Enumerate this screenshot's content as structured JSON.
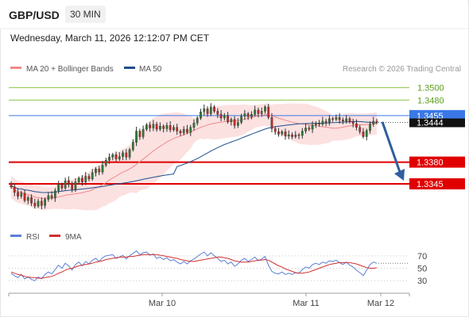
{
  "header": {
    "symbol": "GBP/USD",
    "timeframe": "30 MIN",
    "datetime": "Wednesday, March 11, 2026 12:12:07 PM CET"
  },
  "legend": {
    "ma20": "MA 20 + Bollinger Bands",
    "ma50": "MA 50",
    "credit": "Research © 2026 Trading Central",
    "ma20_color": "#f08a8a",
    "ma50_color": "#1f4e8c"
  },
  "chart_data": [
    {
      "type": "candlestick",
      "title": "",
      "x_tick_labels": [
        "Mar 10",
        "Mar 11",
        "Mar 12"
      ],
      "ylim": [
        1.329,
        1.352
      ],
      "levels": [
        {
          "label": "1.3500",
          "value": 1.35,
          "style": "green-thin"
        },
        {
          "label": "1.3480",
          "value": 1.348,
          "style": "green-thin"
        },
        {
          "label": "1.3455",
          "value": 1.3455,
          "style": "current-price"
        },
        {
          "label": "1.3444",
          "value": 1.3444,
          "style": "dotted-last"
        },
        {
          "label": "1.3380",
          "value": 1.338,
          "style": "red-support"
        },
        {
          "label": "1.3345",
          "value": 1.3345,
          "style": "red-support"
        }
      ],
      "colors": {
        "up": "#2e7d32",
        "down": "#c62828",
        "support": "#e00000",
        "current": "#3a78e6",
        "pivot_green": "#8bc34a",
        "bands": "#fbd7d7",
        "arrow": "#2f5f9e"
      },
      "series": [
        {
          "name": "MA 20 + Bollinger Bands"
        },
        {
          "name": "MA 50"
        }
      ],
      "closes": [
        1.334,
        1.3331,
        1.3325,
        1.333,
        1.3318,
        1.3323,
        1.3314,
        1.3309,
        1.3317,
        1.331,
        1.332,
        1.3326,
        1.3322,
        1.3334,
        1.3344,
        1.3338,
        1.335,
        1.3345,
        1.3336,
        1.3348,
        1.3354,
        1.3348,
        1.3357,
        1.3353,
        1.3363,
        1.3369,
        1.3364,
        1.3375,
        1.3383,
        1.3388,
        1.3392,
        1.3385,
        1.3389,
        1.3395,
        1.3388,
        1.34,
        1.3412,
        1.343,
        1.3421,
        1.3433,
        1.344,
        1.3435,
        1.3441,
        1.3433,
        1.3438,
        1.3434,
        1.3439,
        1.3432,
        1.3436,
        1.343,
        1.3427,
        1.3433,
        1.3428,
        1.3436,
        1.3443,
        1.3451,
        1.3461,
        1.3466,
        1.3458,
        1.3469,
        1.3462,
        1.3457,
        1.3451,
        1.3455,
        1.3445,
        1.3449,
        1.3439,
        1.3444,
        1.3454,
        1.3458,
        1.3453,
        1.3457,
        1.3464,
        1.3458,
        1.3462,
        1.3469,
        1.3452,
        1.3434,
        1.3429,
        1.3425,
        1.3429,
        1.3422,
        1.3424,
        1.3421,
        1.3424,
        1.3423,
        1.343,
        1.3435,
        1.3433,
        1.344,
        1.3443,
        1.3441,
        1.3446,
        1.3444,
        1.345,
        1.3449,
        1.3452,
        1.3448,
        1.3446,
        1.345,
        1.3445,
        1.3442,
        1.3436,
        1.3429,
        1.3421,
        1.3431,
        1.3441,
        1.3446,
        1.3444
      ],
      "forecast_arrow": {
        "from_value": 1.3455,
        "to_value": 1.3345
      }
    },
    {
      "type": "line",
      "title": "",
      "legend": [
        "RSI",
        "9MA"
      ],
      "y_tick_labels": [
        "70",
        "50",
        "30"
      ],
      "ylim": [
        20,
        80
      ],
      "colors": {
        "rsi": "#5b7fd6",
        "ma9": "#d32f2f"
      },
      "rsi": [
        42,
        38,
        35,
        40,
        33,
        36,
        32,
        30,
        36,
        33,
        40,
        44,
        41,
        48,
        55,
        50,
        58,
        54,
        47,
        56,
        60,
        54,
        61,
        57,
        63,
        66,
        61,
        67,
        70,
        71,
        72,
        66,
        68,
        71,
        65,
        70,
        74,
        78,
        72,
        75,
        76,
        71,
        73,
        66,
        68,
        64,
        67,
        62,
        64,
        60,
        57,
        61,
        57,
        62,
        65,
        69,
        73,
        76,
        70,
        75,
        70,
        66,
        61,
        63,
        57,
        60,
        53,
        57,
        63,
        66,
        61,
        64,
        68,
        62,
        65,
        69,
        55,
        45,
        42,
        41,
        44,
        40,
        42,
        40,
        43,
        42,
        48,
        52,
        50,
        56,
        58,
        56,
        60,
        58,
        62,
        61,
        63,
        59,
        56,
        60,
        55,
        52,
        47,
        43,
        38,
        47,
        56,
        60,
        58
      ],
      "ma9": [
        44,
        42,
        40,
        39,
        37,
        36,
        35,
        35,
        34,
        34,
        35,
        36,
        37,
        39,
        42,
        44,
        47,
        49,
        50,
        52,
        54,
        55,
        56,
        57,
        58,
        60,
        61,
        62,
        64,
        65,
        66,
        67,
        68,
        68,
        68,
        69,
        69,
        70,
        71,
        72,
        72,
        72,
        72,
        72,
        71,
        70,
        69,
        68,
        67,
        66,
        64,
        63,
        62,
        61,
        61,
        62,
        63,
        64,
        65,
        66,
        67,
        68,
        68,
        67,
        66,
        64,
        62,
        61,
        60,
        60,
        60,
        61,
        62,
        63,
        63,
        64,
        63,
        60,
        57,
        54,
        52,
        49,
        47,
        45,
        43,
        42,
        42,
        43,
        44,
        46,
        48,
        50,
        52,
        54,
        56,
        57,
        58,
        59,
        59,
        59,
        59,
        58,
        57,
        55,
        53,
        51,
        50,
        50,
        51
      ]
    }
  ]
}
